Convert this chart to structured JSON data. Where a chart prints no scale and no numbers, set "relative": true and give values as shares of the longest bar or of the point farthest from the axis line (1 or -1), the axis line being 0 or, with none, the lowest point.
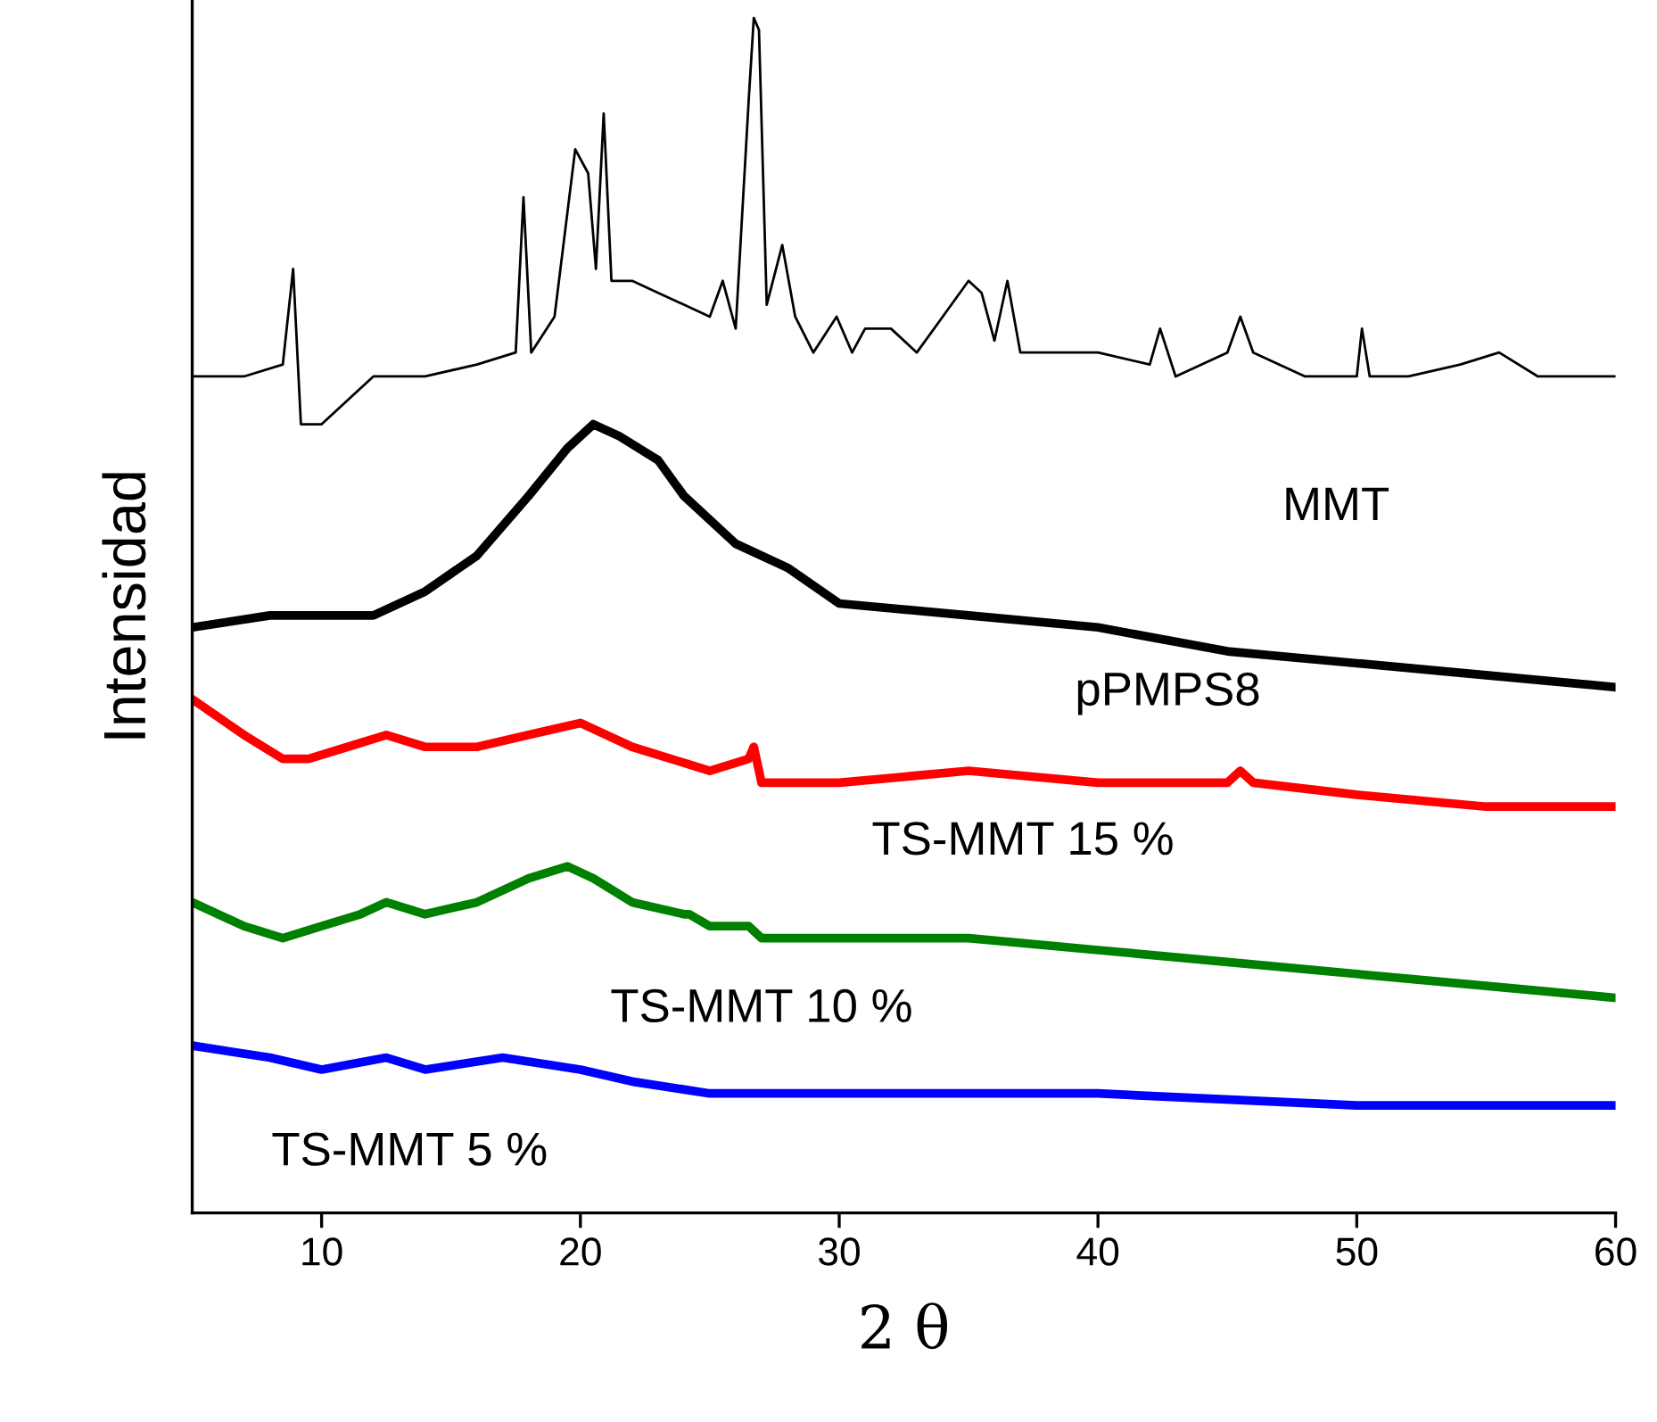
{
  "chart_data": {
    "type": "line",
    "relative": true,
    "xlabel": "2 θ",
    "ylabel": "Intensidad",
    "xlim": [
      5,
      60
    ],
    "xticks": [
      10,
      20,
      30,
      40,
      50,
      60
    ],
    "grid": false,
    "legend": false,
    "tick_labels": "x",
    "series": [
      {
        "name": "MMT",
        "color": "#000000",
        "x": [
          5,
          7,
          8.5,
          8.9,
          9.2,
          10,
          11,
          12,
          14,
          16,
          17.5,
          17.8,
          18.1,
          19,
          19.8,
          20.3,
          20.6,
          20.9,
          21.2,
          22,
          23,
          24,
          25,
          25.5,
          26,
          26.5,
          26.7,
          26.9,
          27.2,
          27.8,
          28.3,
          29,
          29.9,
          30.5,
          31,
          32,
          33,
          34,
          35,
          35.5,
          36,
          36.5,
          37,
          38,
          40,
          42,
          42.4,
          43,
          45,
          45.5,
          46,
          48,
          50,
          50.2,
          50.5,
          52,
          54,
          55.5,
          57,
          60
        ],
        "values": [
          0.7,
          0.7,
          0.71,
          0.79,
          0.66,
          0.66,
          0.68,
          0.7,
          0.7,
          0.71,
          0.72,
          0.85,
          0.72,
          0.75,
          0.89,
          0.87,
          0.79,
          0.92,
          0.78,
          0.78,
          0.77,
          0.76,
          0.75,
          0.78,
          0.74,
          0.93,
          1,
          0.99,
          0.76,
          0.81,
          0.75,
          0.72,
          0.75,
          0.72,
          0.74,
          0.74,
          0.72,
          0.75,
          0.78,
          0.77,
          0.73,
          0.78,
          0.72,
          0.72,
          0.72,
          0.71,
          0.74,
          0.7,
          0.72,
          0.75,
          0.72,
          0.7,
          0.7,
          0.74,
          0.7,
          0.7,
          0.71,
          0.72,
          0.7,
          0.7
        ]
      },
      {
        "name": "pPMPS8",
        "color": "#000000",
        "x": [
          5,
          8,
          10,
          12,
          14,
          16,
          18,
          19.5,
          20.5,
          21.5,
          23,
          24,
          26,
          28,
          30,
          35,
          40,
          45,
          50,
          55,
          60
        ],
        "values": [
          0.49,
          0.5,
          0.5,
          0.5,
          0.52,
          0.55,
          0.6,
          0.64,
          0.66,
          0.65,
          0.63,
          0.6,
          0.56,
          0.54,
          0.51,
          0.5,
          0.49,
          0.47,
          0.46,
          0.45,
          0.44
        ]
      },
      {
        "name": "TS-MMT 15 %",
        "color": "#ff0000",
        "x": [
          5,
          7,
          8.5,
          9.5,
          11,
          12.5,
          14,
          16,
          18,
          20,
          22,
          25,
          26.5,
          26.7,
          27,
          30,
          35,
          40,
          45,
          45.5,
          46,
          50,
          55,
          60
        ],
        "values": [
          0.43,
          0.4,
          0.38,
          0.38,
          0.39,
          0.4,
          0.39,
          0.39,
          0.4,
          0.41,
          0.39,
          0.37,
          0.38,
          0.39,
          0.36,
          0.36,
          0.37,
          0.36,
          0.36,
          0.37,
          0.36,
          0.35,
          0.34,
          0.34
        ]
      },
      {
        "name": "TS-MMT 10 %",
        "color": "#008000",
        "x": [
          5,
          7,
          8.5,
          10,
          11.5,
          12.5,
          14,
          16,
          18,
          19.5,
          20.5,
          22,
          24,
          24.2,
          25,
          26.5,
          27,
          30,
          35,
          40,
          45,
          50,
          55,
          60
        ],
        "values": [
          0.26,
          0.24,
          0.23,
          0.24,
          0.25,
          0.26,
          0.25,
          0.26,
          0.28,
          0.29,
          0.28,
          0.26,
          0.25,
          0.25,
          0.24,
          0.24,
          0.23,
          0.23,
          0.23,
          0.22,
          0.21,
          0.2,
          0.19,
          0.18
        ]
      },
      {
        "name": "TS-MMT 5 %",
        "color": "#0000ff",
        "x": [
          5,
          8,
          10,
          12.5,
          14,
          17,
          20,
          22,
          25,
          30,
          40,
          50,
          60
        ],
        "values": [
          0.14,
          0.13,
          0.12,
          0.13,
          0.12,
          0.13,
          0.12,
          0.11,
          0.1,
          0.1,
          0.1,
          0.09,
          0.09
        ]
      }
    ]
  }
}
